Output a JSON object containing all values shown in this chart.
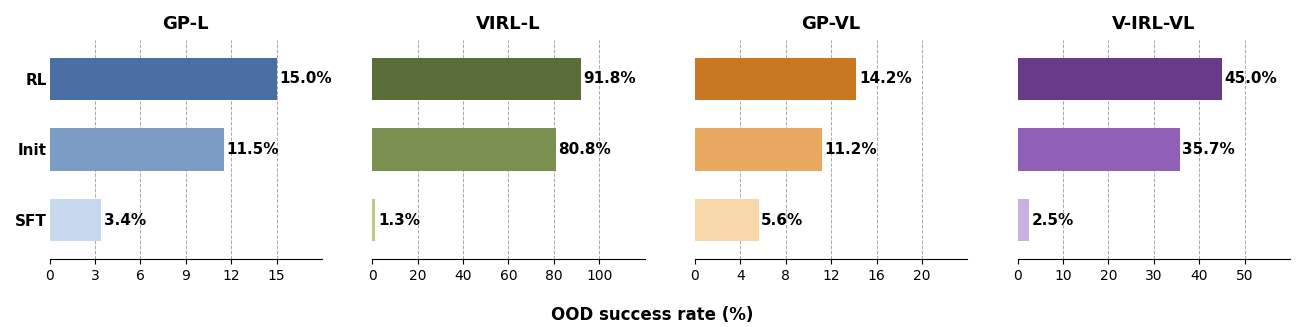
{
  "groups": [
    "GP-L",
    "VIRL-L",
    "GP-VL",
    "V-IRL-VL"
  ],
  "categories": [
    "RL",
    "Init",
    "SFT"
  ],
  "values": {
    "GP-L": [
      15.0,
      11.5,
      3.4
    ],
    "VIRL-L": [
      91.8,
      80.8,
      1.3
    ],
    "GP-VL": [
      14.2,
      11.2,
      5.6
    ],
    "V-IRL-VL": [
      45.0,
      35.7,
      2.5
    ]
  },
  "xlims": {
    "GP-L": [
      0,
      15
    ],
    "VIRL-L": [
      0,
      100
    ],
    "GP-VL": [
      0,
      20
    ],
    "V-IRL-VL": [
      0,
      50
    ]
  },
  "xticks": {
    "GP-L": [
      0,
      3,
      6,
      9,
      12,
      15
    ],
    "VIRL-L": [
      0,
      20,
      40,
      60,
      80,
      100
    ],
    "GP-VL": [
      0,
      4,
      8,
      12,
      16,
      20
    ],
    "V-IRL-VL": [
      0,
      10,
      20,
      30,
      40,
      50
    ]
  },
  "colors": {
    "GP-L": [
      "#4a6fa5",
      "#7a9cc5",
      "#c5d8ee"
    ],
    "VIRL-L": [
      "#5a6e3a",
      "#7a9050",
      "#b8cc88"
    ],
    "GP-VL": [
      "#c87820",
      "#e8a860",
      "#f8d8a8"
    ],
    "V-IRL-VL": [
      "#6a3a8a",
      "#9060b8",
      "#c8b0e0"
    ]
  },
  "labels": {
    "GP-L": [
      "15.0%",
      "11.5%",
      "3.4%"
    ],
    "VIRL-L": [
      "91.8%",
      "80.8%",
      "1.3%"
    ],
    "GP-VL": [
      "14.2%",
      "11.2%",
      "5.6%"
    ],
    "V-IRL-VL": [
      "45.0%",
      "35.7%",
      "2.5%"
    ]
  },
  "xlabel": "OOD success rate (%)",
  "bar_height": 0.6,
  "background_color": "#ffffff",
  "title_fontsize": 13,
  "label_fontsize": 11,
  "tick_fontsize": 10,
  "xlabel_fontsize": 12
}
